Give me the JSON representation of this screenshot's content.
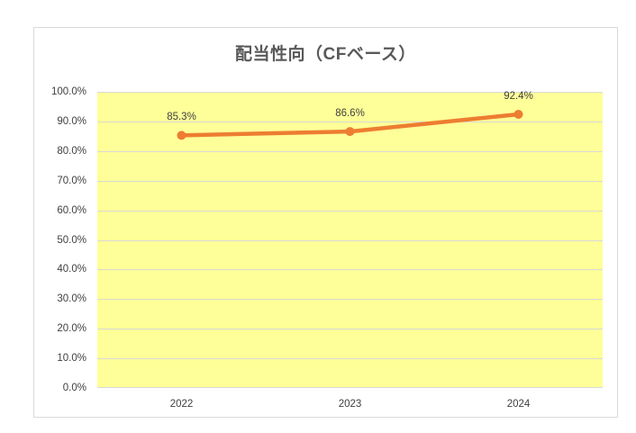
{
  "chart_data": {
    "type": "line",
    "title": "配当性向（CFベース）",
    "categories": [
      "2022",
      "2023",
      "2024"
    ],
    "series": [
      {
        "name": "配当性向（CFベース）",
        "values": [
          85.3,
          86.6,
          92.4
        ]
      }
    ],
    "data_labels": [
      "85.3%",
      "86.6%",
      "92.4%"
    ],
    "y_ticks": [
      "0.0%",
      "10.0%",
      "20.0%",
      "30.0%",
      "40.0%",
      "50.0%",
      "60.0%",
      "70.0%",
      "80.0%",
      "90.0%",
      "100.0%"
    ],
    "ylim": [
      0,
      100
    ],
    "y_step": 10,
    "grid": true,
    "legend_position": "none",
    "colors": {
      "line": "#ed7d31",
      "marker": "#ed7d31",
      "plot_bg": "#ffff99",
      "gridline": "#d9d9d9",
      "tick_text": "#404040",
      "title_text": "#595959",
      "chart_border": "#d9d9d9",
      "chart_bg": "#ffffff"
    }
  }
}
